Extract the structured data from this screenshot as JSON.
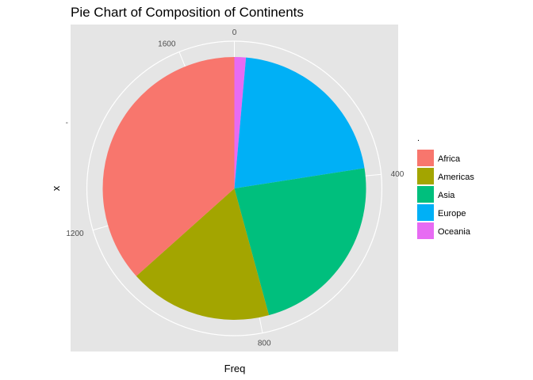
{
  "chart_data": {
    "type": "pie",
    "title": "Pie Chart of Composition of Continents",
    "xlabel": "Freq",
    "ylabel": "x",
    "y_tick_label": "-",
    "legend_title": ".",
    "legend_position": "right",
    "grid": true,
    "theta_ticks": [
      0,
      400,
      800,
      1200,
      1600
    ],
    "theta_tick_labels": [
      "0",
      "400",
      "800",
      "1200",
      "1600"
    ],
    "total": 1704,
    "categories": [
      "Africa",
      "Americas",
      "Asia",
      "Europe",
      "Oceania"
    ],
    "values": [
      624,
      300,
      396,
      360,
      24
    ],
    "colors": [
      "#F8766D",
      "#A3A500",
      "#00BF7D",
      "#00B0F6",
      "#E76BF3"
    ],
    "slice_order": [
      "Oceania",
      "Europe",
      "Asia",
      "Americas",
      "Africa"
    ]
  }
}
